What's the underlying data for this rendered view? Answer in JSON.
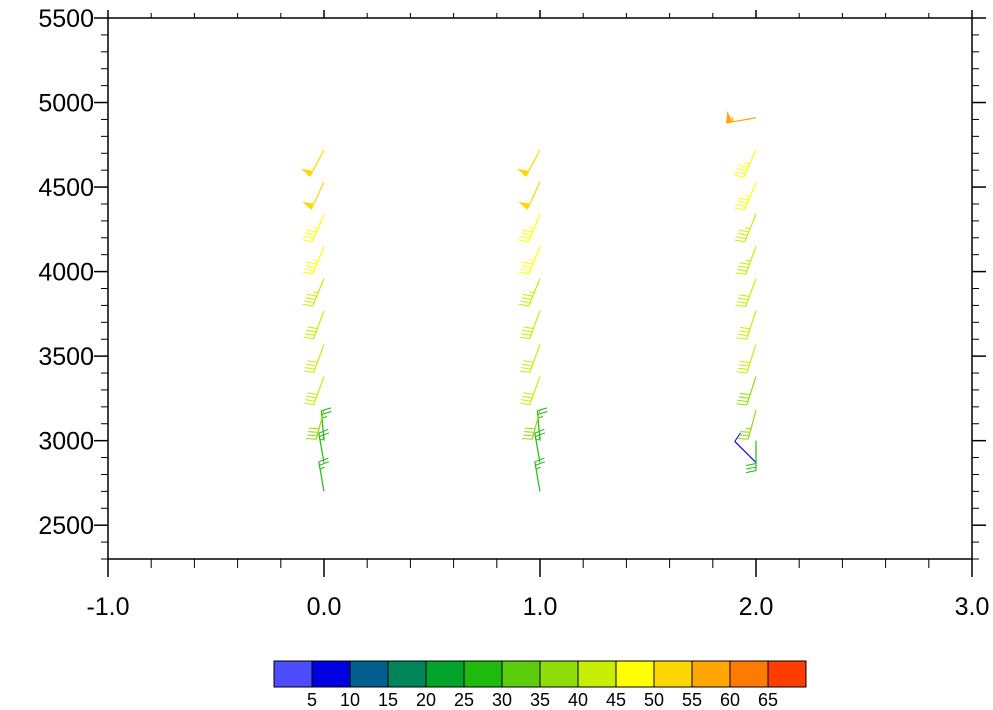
{
  "chart_data": {
    "type": "wind-barb",
    "x_ticks": [
      "-1.0",
      "0.0",
      "1.0",
      "2.0",
      "3.0"
    ],
    "y_ticks": [
      "2500",
      "3000",
      "3500",
      "4000",
      "4500",
      "5000",
      "5500"
    ],
    "xlim": [
      -1.0,
      3.0
    ],
    "ylim": [
      2300,
      5500
    ],
    "grid": false,
    "levels": [
      2700,
      2870,
      3000,
      3180,
      3380,
      3570,
      3770,
      3960,
      4150,
      4340,
      4530,
      4720,
      4910
    ],
    "series": [
      {
        "x": 0.0,
        "barbs": [
          {
            "y": 2700,
            "speed": 27,
            "dir": 350
          },
          {
            "y": 2870,
            "speed": 26,
            "dir": 350
          },
          {
            "y": 3000,
            "speed": 27,
            "dir": 355
          },
          {
            "y": 3180,
            "speed": 38,
            "dir": 195
          },
          {
            "y": 3380,
            "speed": 40,
            "dir": 200
          },
          {
            "y": 3570,
            "speed": 41,
            "dir": 200
          },
          {
            "y": 3770,
            "speed": 42,
            "dir": 200
          },
          {
            "y": 3960,
            "speed": 44,
            "dir": 202
          },
          {
            "y": 4150,
            "speed": 45,
            "dir": 202
          },
          {
            "y": 4340,
            "speed": 46,
            "dir": 203
          },
          {
            "y": 4530,
            "speed": 50,
            "dir": 205
          },
          {
            "y": 4720,
            "speed": 52,
            "dir": 208
          }
        ]
      },
      {
        "x": 1.0,
        "barbs": [
          {
            "y": 2700,
            "speed": 27,
            "dir": 350
          },
          {
            "y": 2870,
            "speed": 26,
            "dir": 350
          },
          {
            "y": 3000,
            "speed": 27,
            "dir": 355
          },
          {
            "y": 3180,
            "speed": 38,
            "dir": 195
          },
          {
            "y": 3380,
            "speed": 40,
            "dir": 200
          },
          {
            "y": 3570,
            "speed": 41,
            "dir": 200
          },
          {
            "y": 3770,
            "speed": 42,
            "dir": 200
          },
          {
            "y": 3960,
            "speed": 44,
            "dir": 202
          },
          {
            "y": 4150,
            "speed": 45,
            "dir": 202
          },
          {
            "y": 4340,
            "speed": 46,
            "dir": 203
          },
          {
            "y": 4530,
            "speed": 50,
            "dir": 205
          },
          {
            "y": 4720,
            "speed": 52,
            "dir": 208
          }
        ]
      },
      {
        "x": 2.0,
        "barbs": [
          {
            "y": 2870,
            "speed": 8,
            "dir": 315
          },
          {
            "y": 3000,
            "speed": 28,
            "dir": 180
          },
          {
            "y": 3180,
            "speed": 37,
            "dir": 195
          },
          {
            "y": 3380,
            "speed": 39,
            "dir": 198
          },
          {
            "y": 3570,
            "speed": 40,
            "dir": 198
          },
          {
            "y": 3770,
            "speed": 41,
            "dir": 198
          },
          {
            "y": 3960,
            "speed": 42,
            "dir": 200
          },
          {
            "y": 4150,
            "speed": 43,
            "dir": 200
          },
          {
            "y": 4340,
            "speed": 44,
            "dir": 202
          },
          {
            "y": 4530,
            "speed": 45,
            "dir": 202
          },
          {
            "y": 4720,
            "speed": 46,
            "dir": 204
          },
          {
            "y": 4910,
            "speed": 57,
            "dir": 260
          }
        ]
      }
    ],
    "colorbar": {
      "labels": [
        "5",
        "10",
        "15",
        "20",
        "25",
        "30",
        "35",
        "40",
        "45",
        "50",
        "55",
        "60",
        "65"
      ],
      "colors": [
        "#4d4dff",
        "#0000e0",
        "#005f8f",
        "#00855b",
        "#00a428",
        "#1fba10",
        "#5ccd0c",
        "#8fdc08",
        "#c8ee04",
        "#ffff00",
        "#ffd700",
        "#ffa700",
        "#ff7a00",
        "#ff3d00"
      ]
    }
  }
}
